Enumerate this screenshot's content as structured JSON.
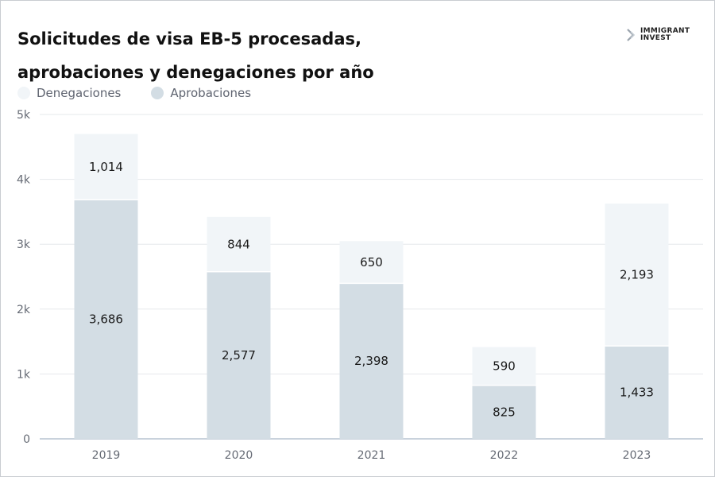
{
  "header": {
    "title_line1": " Solicitudes de visa EB-5 procesadas,",
    "title_line2": "aprobaciones y denegaciones por año",
    "logo_line1": "IMMIGRANT",
    "logo_line2": "INVEST"
  },
  "colors": {
    "approvals": "#d3dde4",
    "denials": "#f1f5f8",
    "grid": "#e6e8eb",
    "axis": "#b7c3d0"
  },
  "chart_data": {
    "type": "bar",
    "stacked": true,
    "title": "Solicitudes de visa EB-5 procesadas, aprobaciones y denegaciones por año",
    "categories": [
      "2019",
      "2020",
      "2021",
      "2022",
      "2023"
    ],
    "series": [
      {
        "name": "Aprobaciones",
        "values": [
          3686,
          2577,
          2398,
          825,
          1433
        ],
        "labels": [
          "3,686",
          "2,577",
          "2,398",
          "825",
          "1,433"
        ]
      },
      {
        "name": "Denegaciones",
        "values": [
          1014,
          844,
          650,
          590,
          2193
        ],
        "labels": [
          "1,014",
          "844",
          "650",
          "590",
          "2,193"
        ]
      }
    ],
    "legend": [
      "Denegaciones",
      "Aprobaciones"
    ],
    "legend_position": "top-left",
    "yticks": [
      0,
      1000,
      2000,
      3000,
      4000,
      5000
    ],
    "ytick_labels": [
      "0",
      "1k",
      "2k",
      "3k",
      "4k",
      "5k"
    ],
    "ylim": [
      0,
      5000
    ],
    "grid": true
  }
}
